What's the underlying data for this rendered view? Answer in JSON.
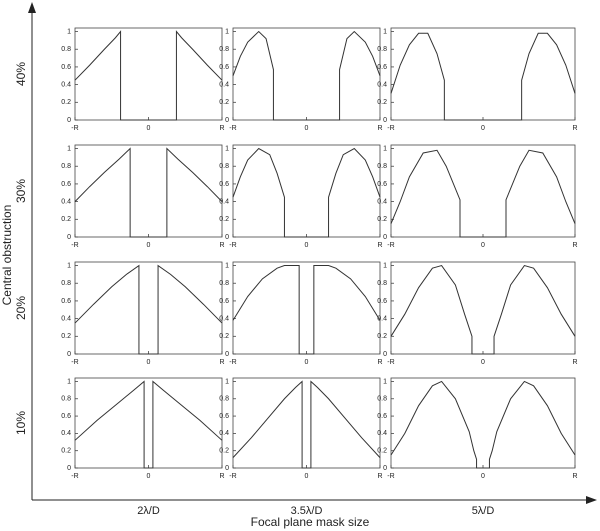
{
  "figure": {
    "y_axis_label": "Central obstruction",
    "x_axis_label": "Focal plane mask size",
    "row_labels": [
      "40%",
      "30%",
      "20%",
      "10%"
    ],
    "column_labels": [
      "2λ/D",
      "3.5λ/D",
      "5λ/D"
    ]
  },
  "chart_data": [
    {
      "type": "line",
      "x": [
        -1,
        -0.8,
        -0.6,
        -0.45,
        -0.38,
        -0.38,
        0.38,
        0.38,
        0.45,
        0.6,
        0.8,
        1
      ],
      "values": [
        0.45,
        0.62,
        0.8,
        0.93,
        1,
        0,
        0,
        1,
        0.93,
        0.8,
        0.62,
        0.45
      ],
      "xlim": [
        -1,
        1
      ],
      "ylim": [
        0,
        1.04
      ],
      "xticks": [
        {
          "value": -1,
          "label": "-R"
        },
        0,
        {
          "value": 1,
          "label": "R"
        }
      ],
      "yticks": [
        0,
        0.2,
        0.4,
        0.6,
        0.8,
        1
      ],
      "color": "#333333"
    },
    {
      "type": "line",
      "x": [
        -1,
        -0.9,
        -0.8,
        -0.65,
        -0.55,
        -0.45,
        -0.45,
        0.45,
        0.45,
        0.55,
        0.65,
        0.8,
        0.9,
        1
      ],
      "values": [
        0.5,
        0.72,
        0.88,
        1,
        0.92,
        0.57,
        0,
        0,
        0.57,
        0.92,
        1,
        0.88,
        0.72,
        0.5
      ],
      "xlim": [
        -1,
        1
      ],
      "ylim": [
        0,
        1.04
      ],
      "xticks": [
        {
          "value": -1,
          "label": "-R"
        },
        0,
        {
          "value": 1,
          "label": "R"
        }
      ],
      "yticks": [
        0,
        0.2,
        0.4,
        0.6,
        0.8,
        1
      ],
      "color": "#333333"
    },
    {
      "type": "line",
      "x": [
        -1,
        -0.9,
        -0.8,
        -0.7,
        -0.6,
        -0.5,
        -0.42,
        -0.42,
        0.42,
        0.42,
        0.5,
        0.6,
        0.7,
        0.8,
        0.9,
        1
      ],
      "values": [
        0.3,
        0.62,
        0.85,
        0.98,
        0.98,
        0.75,
        0.45,
        0,
        0,
        0.45,
        0.75,
        0.98,
        0.98,
        0.85,
        0.62,
        0.3
      ],
      "xlim": [
        -1,
        1
      ],
      "ylim": [
        0,
        1.04
      ],
      "xticks": [
        {
          "value": -1,
          "label": "-R"
        },
        0,
        {
          "value": 1,
          "label": "R"
        }
      ],
      "yticks": [
        0,
        0.2,
        0.4,
        0.6,
        0.8,
        1
      ],
      "color": "#333333"
    },
    {
      "type": "line",
      "x": [
        -1,
        -0.8,
        -0.6,
        -0.4,
        -0.25,
        -0.25,
        0.25,
        0.25,
        0.4,
        0.6,
        0.8,
        1
      ],
      "values": [
        0.4,
        0.57,
        0.73,
        0.88,
        1,
        0,
        0,
        1,
        0.88,
        0.73,
        0.57,
        0.4
      ],
      "xlim": [
        -1,
        1
      ],
      "ylim": [
        0,
        1.04
      ],
      "xticks": [
        {
          "value": -1,
          "label": "-R"
        },
        0,
        {
          "value": 1,
          "label": "R"
        }
      ],
      "yticks": [
        0,
        0.2,
        0.4,
        0.6,
        0.8,
        1
      ],
      "color": "#333333"
    },
    {
      "type": "line",
      "x": [
        -1,
        -0.9,
        -0.8,
        -0.65,
        -0.5,
        -0.4,
        -0.3,
        -0.3,
        0.3,
        0.3,
        0.4,
        0.5,
        0.65,
        0.8,
        0.9,
        1
      ],
      "values": [
        0.45,
        0.68,
        0.87,
        1,
        0.93,
        0.72,
        0.45,
        0,
        0,
        0.45,
        0.72,
        0.93,
        1,
        0.87,
        0.68,
        0.45
      ],
      "xlim": [
        -1,
        1
      ],
      "ylim": [
        0,
        1.04
      ],
      "xticks": [
        {
          "value": -1,
          "label": "-R"
        },
        0,
        {
          "value": 1,
          "label": "R"
        }
      ],
      "yticks": [
        0,
        0.2,
        0.4,
        0.6,
        0.8,
        1
      ],
      "color": "#333333"
    },
    {
      "type": "line",
      "x": [
        -1,
        -0.9,
        -0.8,
        -0.65,
        -0.5,
        -0.4,
        -0.25,
        -0.25,
        0.25,
        0.25,
        0.4,
        0.5,
        0.65,
        0.8,
        0.9,
        1
      ],
      "values": [
        0.15,
        0.4,
        0.68,
        0.95,
        0.98,
        0.8,
        0.42,
        0,
        0,
        0.42,
        0.8,
        0.98,
        0.95,
        0.68,
        0.4,
        0.15
      ],
      "xlim": [
        -1,
        1
      ],
      "ylim": [
        0,
        1.04
      ],
      "xticks": [
        {
          "value": -1,
          "label": "-R"
        },
        0,
        {
          "value": 1,
          "label": "R"
        }
      ],
      "yticks": [
        0,
        0.2,
        0.4,
        0.6,
        0.8,
        1
      ],
      "color": "#333333"
    },
    {
      "type": "line",
      "x": [
        -1,
        -0.75,
        -0.5,
        -0.3,
        -0.13,
        -0.13,
        0.13,
        0.13,
        0.3,
        0.5,
        0.75,
        1
      ],
      "values": [
        0.35,
        0.56,
        0.76,
        0.9,
        1,
        0,
        0,
        1,
        0.9,
        0.76,
        0.56,
        0.35
      ],
      "xlim": [
        -1,
        1
      ],
      "ylim": [
        0,
        1.04
      ],
      "xticks": [
        {
          "value": -1,
          "label": "-R"
        },
        0,
        {
          "value": 1,
          "label": "R"
        }
      ],
      "yticks": [
        0,
        0.2,
        0.4,
        0.6,
        0.8,
        1
      ],
      "color": "#333333"
    },
    {
      "type": "line",
      "x": [
        -1,
        -0.8,
        -0.6,
        -0.4,
        -0.3,
        -0.1,
        -0.1,
        0.1,
        0.1,
        0.3,
        0.4,
        0.6,
        0.8,
        1
      ],
      "values": [
        0.38,
        0.65,
        0.85,
        0.97,
        1,
        1,
        0,
        0,
        1,
        1,
        0.97,
        0.85,
        0.65,
        0.38
      ],
      "xlim": [
        -1,
        1
      ],
      "ylim": [
        0,
        1.04
      ],
      "xticks": [
        {
          "value": -1,
          "label": "-R"
        },
        0,
        {
          "value": 1,
          "label": "R"
        }
      ],
      "yticks": [
        0,
        0.2,
        0.4,
        0.6,
        0.8,
        1
      ],
      "color": "#333333"
    },
    {
      "type": "line",
      "x": [
        -1,
        -0.85,
        -0.7,
        -0.55,
        -0.45,
        -0.3,
        -0.2,
        -0.12,
        -0.12,
        0.12,
        0.12,
        0.2,
        0.3,
        0.45,
        0.55,
        0.7,
        0.85,
        1
      ],
      "values": [
        0.2,
        0.45,
        0.75,
        0.97,
        1,
        0.78,
        0.45,
        0.2,
        0,
        0,
        0.2,
        0.45,
        0.78,
        1,
        0.97,
        0.75,
        0.45,
        0.2
      ],
      "xlim": [
        -1,
        1
      ],
      "ylim": [
        0,
        1.04
      ],
      "xticks": [
        {
          "value": -1,
          "label": "-R"
        },
        0,
        {
          "value": 1,
          "label": "R"
        }
      ],
      "yticks": [
        0,
        0.2,
        0.4,
        0.6,
        0.8,
        1
      ],
      "color": "#333333"
    },
    {
      "type": "line",
      "x": [
        -1,
        -0.7,
        -0.4,
        -0.2,
        -0.06,
        -0.06,
        0.06,
        0.06,
        0.2,
        0.4,
        0.7,
        1
      ],
      "values": [
        0.32,
        0.55,
        0.76,
        0.9,
        1,
        0,
        0,
        1,
        0.9,
        0.76,
        0.55,
        0.32
      ],
      "xlim": [
        -1,
        1
      ],
      "ylim": [
        0,
        1.04
      ],
      "xticks": [
        {
          "value": -1,
          "label": "-R"
        },
        0,
        {
          "value": 1,
          "label": "R"
        }
      ],
      "yticks": [
        0,
        0.2,
        0.4,
        0.6,
        0.8,
        1
      ],
      "color": "#333333"
    },
    {
      "type": "line",
      "x": [
        -1,
        -0.75,
        -0.5,
        -0.3,
        -0.15,
        -0.06,
        -0.06,
        0.06,
        0.06,
        0.15,
        0.3,
        0.5,
        0.75,
        1
      ],
      "values": [
        0.12,
        0.35,
        0.6,
        0.8,
        0.93,
        1,
        0,
        0,
        1,
        0.93,
        0.8,
        0.6,
        0.35,
        0.12
      ],
      "xlim": [
        -1,
        1
      ],
      "ylim": [
        0,
        1.04
      ],
      "xticks": [
        {
          "value": -1,
          "label": "-R"
        },
        0,
        {
          "value": 1,
          "label": "R"
        }
      ],
      "yticks": [
        0,
        0.2,
        0.4,
        0.6,
        0.8,
        1
      ],
      "color": "#333333"
    },
    {
      "type": "line",
      "x": [
        -1,
        -0.85,
        -0.7,
        -0.55,
        -0.45,
        -0.3,
        -0.15,
        -0.1,
        -0.07,
        -0.07,
        0.07,
        0.07,
        0.1,
        0.15,
        0.3,
        0.45,
        0.55,
        0.7,
        0.85,
        1
      ],
      "values": [
        0.15,
        0.4,
        0.72,
        0.95,
        1,
        0.8,
        0.42,
        0.2,
        0.1,
        0,
        0,
        0.1,
        0.2,
        0.42,
        0.8,
        1,
        0.95,
        0.72,
        0.4,
        0.15
      ],
      "xlim": [
        -1,
        1
      ],
      "ylim": [
        0,
        1.04
      ],
      "xticks": [
        {
          "value": -1,
          "label": "-R"
        },
        0,
        {
          "value": 1,
          "label": "R"
        }
      ],
      "yticks": [
        0,
        0.2,
        0.4,
        0.6,
        0.8,
        1
      ],
      "color": "#333333"
    }
  ]
}
